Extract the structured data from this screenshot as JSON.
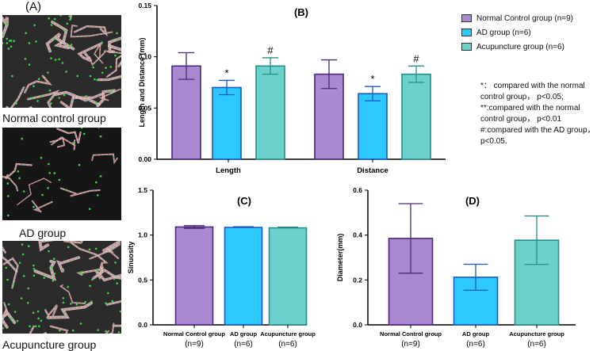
{
  "panel_a": {
    "label": "(A)",
    "images": [
      {
        "caption": "Normal control group",
        "density": "high"
      },
      {
        "caption": "AD group",
        "density": "low"
      },
      {
        "caption": "Acupuncture group",
        "density": "high"
      }
    ]
  },
  "legend": {
    "items": [
      {
        "label": "Normal Control group  (n=9)",
        "color": "#a98ad1"
      },
      {
        "label": "AD group (n=6)",
        "color": "#2cc8ff"
      },
      {
        "label": "Acupuncture group  (n=6)",
        "color": "#6cd0cb"
      }
    ]
  },
  "notes": [
    "*： compared with the normal control group， p<0.05;",
    "**:compared with the normal control group， p<0.01",
    "#:compared with the AD group， p<0.05."
  ],
  "chart_data": [
    {
      "id": "B",
      "type": "bar",
      "title": "(B)",
      "ylabel": "Length and Distance  (mm)",
      "xlabel": "",
      "ylim": [
        0,
        0.15
      ],
      "yticks": [
        "0.00",
        "0.05",
        "0.10",
        "0.15"
      ],
      "categories": [
        "Length",
        "Distance"
      ],
      "series": [
        {
          "name": "Normal Control group",
          "values": [
            0.091,
            0.083
          ],
          "errors": [
            0.013,
            0.014
          ],
          "marks": [
            "",
            ""
          ]
        },
        {
          "name": "AD group",
          "values": [
            0.07,
            0.064
          ],
          "errors": [
            0.007,
            0.007
          ],
          "marks": [
            "*",
            "*"
          ]
        },
        {
          "name": "Acupuncture group",
          "values": [
            0.091,
            0.083
          ],
          "errors": [
            0.008,
            0.008
          ],
          "marks": [
            "#",
            "#"
          ]
        }
      ]
    },
    {
      "id": "C",
      "type": "bar",
      "title": "(C)",
      "ylabel": "Sinuosity",
      "xlabel": "",
      "ylim": [
        0,
        1.5
      ],
      "yticks": [
        "0.0",
        "0.5",
        "1.0",
        "1.5"
      ],
      "categories": [
        "Normal Control group",
        "AD group",
        "Acupuncture group"
      ],
      "ns": [
        "(n=9)",
        "(n=6)",
        "(n=6)"
      ],
      "values": [
        1.09,
        1.085,
        1.08
      ],
      "errors": [
        0.015,
        0.008,
        0.008
      ]
    },
    {
      "id": "D",
      "type": "bar",
      "title": "(D)",
      "ylabel": "Diameter(mm)",
      "xlabel": "",
      "ylim": [
        0,
        0.6
      ],
      "yticks": [
        "0.0",
        "0.2",
        "0.4",
        "0.6"
      ],
      "categories": [
        "Normal Control group",
        "AD group",
        "Acupuncture group"
      ],
      "ns": [
        "(n=9)",
        "(n=6)",
        "(n=6)"
      ],
      "values": [
        0.385,
        0.212,
        0.377
      ],
      "errors": [
        0.155,
        0.058,
        0.108
      ]
    }
  ]
}
